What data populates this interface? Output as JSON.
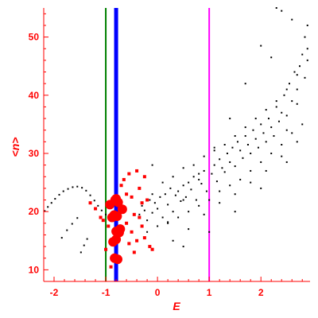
{
  "chart_data": {
    "type": "scatter",
    "title": "",
    "xlabel": "E",
    "ylabel": "<n>",
    "xlim": [
      -2.2,
      2.95
    ],
    "ylim": [
      8,
      55
    ],
    "xticks": [
      -2,
      -1,
      0,
      1,
      2
    ],
    "xtick_labels": [
      "-2",
      "-1",
      "0",
      "1",
      "2"
    ],
    "yticks": [
      10,
      20,
      30,
      40,
      50
    ],
    "ytick_labels": [
      "10",
      "20",
      "30",
      "40",
      "50"
    ],
    "grid": false,
    "colors": {
      "axis": "#ff0000",
      "points_black": "#000000",
      "points_red": "#ff0000",
      "line_green": "#008000",
      "line_blue": "#0000ff",
      "line_magenta": "#ff00ff"
    },
    "vertical_lines": [
      {
        "x": -1.0,
        "color": "#008000"
      },
      {
        "x": -0.8,
        "color": "#0000ff"
      },
      {
        "x": 1.0,
        "color": "#ff00ff"
      }
    ],
    "series_black_curve": {
      "x": [
        -2.18,
        -2.12,
        -2.05,
        -1.98,
        -1.9,
        -1.82,
        -1.73,
        -1.64,
        -1.55,
        -1.46,
        -1.38,
        -1.3,
        -1.22,
        -1.15,
        -1.08,
        -1.0,
        -0.92,
        -1.85,
        -1.75,
        -1.65,
        -1.55,
        -1.48,
        -1.42,
        -1.36
      ],
      "y": [
        20.1,
        20.8,
        21.5,
        22.2,
        22.9,
        23.5,
        23.9,
        24.2,
        24.3,
        24.1,
        23.6,
        22.8,
        21.9,
        21.0,
        20.2,
        19.5,
        18.9,
        15.5,
        16.8,
        17.9,
        18.9,
        13.0,
        14.2,
        15.3
      ]
    },
    "series_black_scatter": {
      "x": [
        -0.35,
        -0.3,
        -0.25,
        -0.2,
        -0.15,
        -0.1,
        -0.05,
        0.0,
        0.05,
        0.1,
        0.15,
        0.2,
        0.25,
        0.3,
        0.35,
        0.4,
        0.45,
        0.5,
        0.55,
        0.6,
        0.65,
        0.7,
        0.75,
        0.8,
        0.85,
        0.9,
        0.95,
        1.05,
        1.1,
        1.15,
        1.2,
        1.25,
        1.3,
        1.35,
        1.4,
        1.45,
        1.5,
        1.55,
        1.6,
        1.65,
        1.7,
        1.75,
        1.8,
        1.85,
        1.9,
        1.95,
        2.0,
        2.05,
        2.1,
        2.15,
        2.2,
        2.25,
        2.3,
        2.35,
        2.4,
        2.45,
        2.5,
        2.55,
        2.6,
        2.65,
        2.7,
        2.75,
        2.8,
        2.85,
        2.9,
        -0.2,
        0.0,
        0.2,
        0.4,
        0.6,
        0.8,
        1.0,
        1.2,
        1.4,
        1.6,
        1.8,
        2.0,
        2.2,
        2.4,
        2.6,
        2.8,
        -0.1,
        0.1,
        0.3,
        0.5,
        0.7,
        0.9,
        1.1,
        1.3,
        1.5,
        1.7,
        1.9,
        2.1,
        2.3,
        2.5,
        2.7,
        2.9,
        0.3,
        0.6,
        0.9,
        1.2,
        1.5,
        1.8,
        2.1,
        2.4,
        2.7,
        0.5,
        1.0,
        1.5,
        2.0,
        2.5,
        2.85,
        2.6,
        2.3,
        2.0,
        1.7,
        1.4,
        1.1,
        0.8,
        0.5,
        0.2,
        -0.1,
        2.5,
        2.7,
        2.9,
        2.2,
        2.4
      ],
      "y": [
        19.5,
        21.0,
        20.2,
        18.5,
        22.0,
        19.8,
        21.5,
        20.5,
        22.5,
        19.0,
        23.0,
        21.2,
        24.0,
        20.0,
        22.8,
        23.5,
        21.8,
        24.5,
        22.5,
        25.0,
        23.8,
        26.0,
        22.0,
        25.5,
        24.8,
        27.0,
        23.5,
        26.5,
        28.0,
        25.2,
        29.0,
        27.5,
        26.8,
        30.0,
        28.5,
        31.0,
        27.8,
        32.0,
        30.5,
        29.2,
        33.0,
        31.5,
        30.0,
        34.0,
        32.5,
        31.0,
        35.0,
        33.5,
        32.0,
        36.0,
        34.5,
        33.0,
        38.0,
        35.5,
        37.0,
        40.0,
        36.5,
        42.0,
        39.0,
        44.0,
        41.0,
        45.0,
        47.0,
        43.0,
        48.0,
        16.5,
        17.5,
        18.2,
        19.0,
        20.0,
        21.0,
        22.0,
        23.5,
        24.5,
        25.5,
        27.0,
        28.5,
        30.0,
        31.5,
        33.5,
        35.0,
        23.0,
        25.0,
        26.0,
        27.5,
        28.0,
        29.5,
        30.5,
        31.5,
        33.0,
        34.5,
        36.0,
        37.5,
        39.0,
        41.0,
        43.5,
        46.0,
        15.0,
        17.0,
        19.5,
        21.5,
        23.0,
        25.0,
        27.0,
        29.5,
        32.0,
        14.0,
        16.5,
        20.0,
        24.0,
        28.5,
        50.0,
        53.0,
        55.0,
        48.5,
        42.0,
        36.0,
        31.0,
        26.5,
        22.0,
        18.0,
        28.0,
        34.0,
        38.5,
        52.0,
        46.5,
        54.5
      ]
    },
    "series_red_small": {
      "x": [
        -1.3,
        -1.2,
        -1.1,
        -1.05,
        -0.95,
        -0.7,
        -0.65,
        -0.6,
        -0.55,
        -0.5,
        -0.45,
        -0.4,
        -0.35,
        -0.3,
        -0.25,
        -0.2,
        -0.6,
        -0.5,
        -0.4,
        -0.3,
        -0.45,
        -0.35,
        -1.0,
        -0.9,
        -0.55,
        -0.25,
        -0.15,
        -0.1
      ],
      "y": [
        21.5,
        20.5,
        19.0,
        18.5,
        17.5,
        24.5,
        25.5,
        23.0,
        26.5,
        22.5,
        19.5,
        27.0,
        24.0,
        21.5,
        26.0,
        22.0,
        18.0,
        16.5,
        15.0,
        17.5,
        13.0,
        19.0,
        13.5,
        10.5,
        14.5,
        15.5,
        14.0,
        13.5
      ]
    },
    "series_red_large": {
      "x": [
        -0.82,
        -0.78,
        -0.84,
        -0.76,
        -0.8,
        -0.74,
        -0.86,
        -0.8,
        -0.77,
        -0.83,
        -0.8,
        -0.92,
        -0.88,
        -0.68,
        -0.72
      ],
      "y": [
        22.0,
        19.2,
        19.4,
        21.6,
        16.6,
        16.4,
        14.8,
        15.2,
        11.8,
        12.0,
        22.2,
        21.2,
        19.0,
        20.4,
        17.0
      ]
    }
  }
}
